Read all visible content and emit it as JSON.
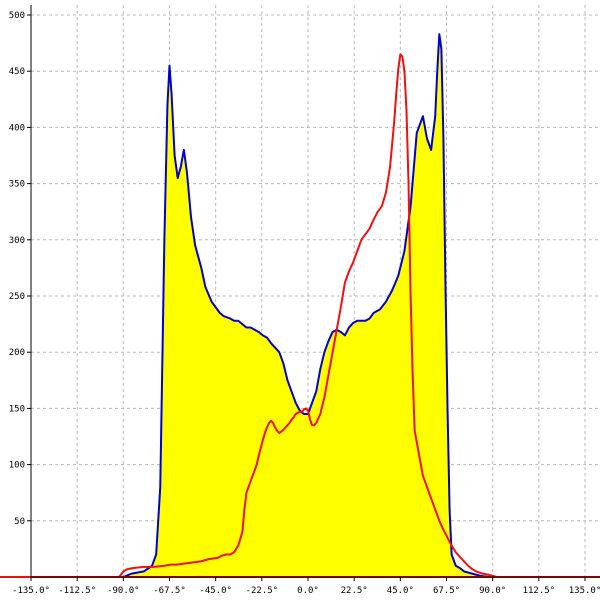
{
  "chart_data": {
    "type": "area",
    "title": "",
    "xlabel": "",
    "ylabel": "",
    "xlim": [
      -135,
      135
    ],
    "ylim": [
      0,
      500
    ],
    "grid": true,
    "x_tick_labels": [
      "-135.0°",
      "-112.5°",
      "-90.0°",
      "-67.5°",
      "-45.0°",
      "-22.5°",
      "0.0°",
      "22.5°",
      "45.0°",
      "67.5°",
      "90.0°",
      "112.5°",
      "135.0°"
    ],
    "x_tick_values": [
      -135,
      -112.5,
      -90,
      -67.5,
      -45,
      -22.5,
      0,
      22.5,
      45,
      67.5,
      90,
      112.5,
      135
    ],
    "y_tick_values": [
      50,
      100,
      150,
      200,
      250,
      300,
      350,
      400,
      450,
      500
    ],
    "series": [
      {
        "color": "#0000cc",
        "fill": "#ffff00",
        "x": [
          -90,
          -86,
          -80,
          -76,
          -74,
          -72,
          -70,
          -68.5,
          -67.5,
          -66.5,
          -65,
          -63.5,
          -62,
          -60.5,
          -59,
          -57,
          -55,
          -52,
          -50,
          -47,
          -45,
          -43,
          -41,
          -38,
          -36,
          -34,
          -32,
          -30,
          -28,
          -26,
          -24,
          -22,
          -20,
          -18,
          -14,
          -12,
          -10,
          -8,
          -6,
          -4,
          -2,
          0,
          2,
          4,
          6,
          8,
          10,
          12,
          14,
          16,
          18,
          20,
          22,
          24,
          26,
          28,
          30,
          32,
          35,
          38,
          41,
          44,
          47,
          50,
          53,
          56,
          58,
          60,
          62,
          63,
          64,
          65,
          66,
          67,
          68,
          69,
          70,
          72,
          74,
          76,
          78,
          80,
          82,
          84,
          88,
          90
        ],
        "y": [
          0,
          3,
          5,
          10,
          20,
          80,
          300,
          420,
          455,
          430,
          375,
          355,
          365,
          380,
          360,
          320,
          295,
          275,
          258,
          245,
          240,
          235,
          232,
          230,
          228,
          228,
          225,
          222,
          222,
          220,
          218,
          215,
          213,
          208,
          200,
          190,
          175,
          165,
          155,
          148,
          145,
          145,
          155,
          165,
          185,
          200,
          210,
          218,
          220,
          218,
          215,
          222,
          226,
          228,
          228,
          228,
          230,
          235,
          238,
          245,
          255,
          268,
          290,
          330,
          395,
          410,
          390,
          380,
          410,
          450,
          483,
          470,
          390,
          260,
          150,
          60,
          20,
          10,
          8,
          5,
          4,
          3,
          2,
          1,
          0,
          0
        ]
      },
      {
        "color": "#ee1111",
        "x": [
          -135,
          -92,
          -90,
          -88,
          -85,
          -80,
          -75,
          -70,
          -67,
          -64,
          -60,
          -56,
          -52,
          -48,
          -44,
          -42,
          -40,
          -38,
          -36,
          -34,
          -32,
          -31,
          -30,
          -29,
          -28,
          -27,
          -26,
          -25,
          -24,
          -23,
          -22,
          -21,
          -20,
          -19,
          -18,
          -17,
          -16,
          -15,
          -14,
          -12,
          -11,
          -10,
          -9,
          -8,
          -7,
          -6,
          -5,
          -4,
          -3,
          -2,
          -1,
          0,
          1,
          2,
          3,
          4,
          6,
          8,
          10,
          12,
          14,
          16,
          18,
          20,
          22,
          24,
          26,
          28,
          30,
          32,
          34,
          36,
          38,
          40,
          41,
          42,
          43,
          44,
          45,
          46,
          47,
          48,
          49,
          50,
          51,
          52,
          53,
          54,
          55,
          56,
          58,
          60,
          62,
          64,
          66,
          68,
          70,
          72,
          74,
          76,
          78,
          80,
          82,
          85,
          88,
          90,
          92,
          135
        ],
        "y": [
          0,
          0,
          5,
          7,
          8,
          9,
          9,
          10,
          11,
          11,
          12,
          13,
          14,
          16,
          17,
          19,
          20,
          20,
          22,
          28,
          40,
          60,
          75,
          80,
          85,
          90,
          95,
          100,
          108,
          115,
          122,
          128,
          133,
          137,
          139,
          137,
          133,
          130,
          128,
          131,
          133,
          135,
          137,
          140,
          142,
          145,
          146,
          147,
          147,
          149,
          150,
          148,
          140,
          135,
          135,
          137,
          145,
          160,
          180,
          200,
          220,
          240,
          262,
          272,
          280,
          290,
          300,
          305,
          310,
          318,
          325,
          330,
          342,
          365,
          385,
          405,
          430,
          452,
          465,
          463,
          450,
          415,
          350,
          250,
          180,
          130,
          120,
          110,
          100,
          90,
          80,
          70,
          60,
          50,
          42,
          35,
          28,
          22,
          18,
          14,
          10,
          7,
          5,
          3,
          2,
          1,
          0,
          0
        ]
      }
    ]
  }
}
